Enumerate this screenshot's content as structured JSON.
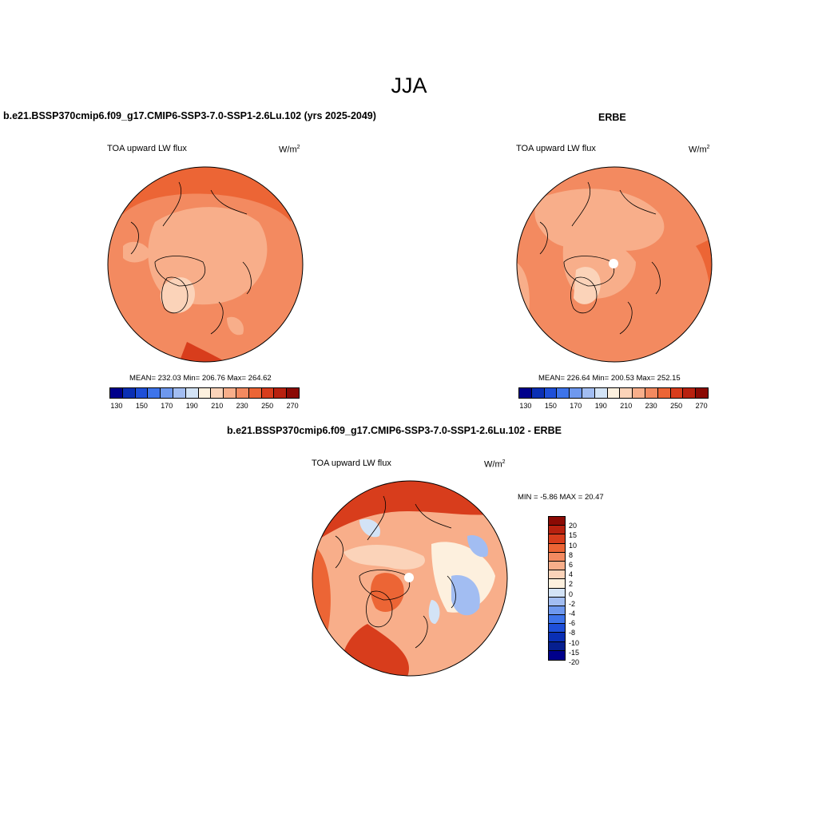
{
  "figure": {
    "title": "JJA"
  },
  "panels": {
    "model": {
      "case_title": "b.e21.BSSP370cmip6.f09_g17.CMIP6-SSP3-7.0-SSP1-2.6Lu.102 (yrs 2025-2049)",
      "variable": "TOA upward LW flux",
      "units": "W/m",
      "units_exp": "2",
      "stats": "MEAN= 232.03  Min= 206.76  Max= 264.62"
    },
    "obs": {
      "case_title": "ERBE",
      "variable": "TOA upward LW flux",
      "units": "W/m",
      "units_exp": "2",
      "stats": "MEAN= 226.64  Min= 200.53  Max= 252.15"
    },
    "diff": {
      "case_title": "b.e21.BSSP370cmip6.f09_g17.CMIP6-SSP3-7.0-SSP1-2.6Lu.102 - ERBE",
      "variable": "TOA upward LW flux",
      "units": "W/m",
      "units_exp": "2",
      "stats": "MIN =  -5.86 MAX =  20.47"
    }
  },
  "colorbar_abs": {
    "colors": [
      "#00008b",
      "#0a2fb4",
      "#1e4fd8",
      "#3e74ea",
      "#6e98ee",
      "#a2bdf2",
      "#d3e3f6",
      "#fdf0de",
      "#fbd3b9",
      "#f8ae8a",
      "#f38a60",
      "#ec6535",
      "#d83d1c",
      "#b8210f",
      "#8b0a04"
    ],
    "ticks": [
      "130",
      "150",
      "170",
      "190",
      "210",
      "230",
      "250",
      "270"
    ]
  },
  "colorbar_diff": {
    "colors": [
      "#8b0a04",
      "#b8210f",
      "#d83d1c",
      "#ec6535",
      "#f38a60",
      "#f8ae8a",
      "#fbd3b9",
      "#fdf0de",
      "#d3e3f6",
      "#a2bdf2",
      "#6e98ee",
      "#3e74ea",
      "#1e4fd8",
      "#0a2fb4",
      "#061f8f",
      "#00008b"
    ],
    "ticks": [
      "20",
      "15",
      "10",
      "8",
      "6",
      "4",
      "2",
      "0",
      "-2",
      "-4",
      "-6",
      "-8",
      "-10",
      "-15",
      "-20"
    ]
  }
}
